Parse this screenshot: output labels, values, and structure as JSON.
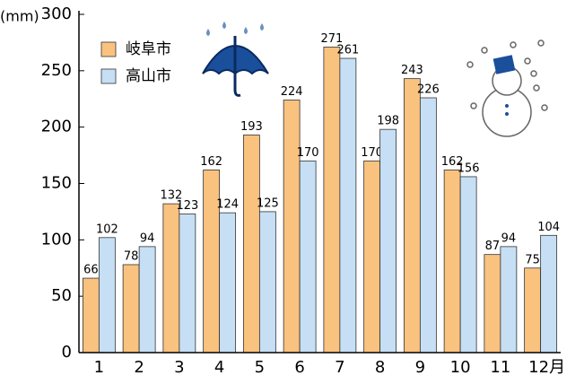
{
  "chart_data": {
    "type": "bar",
    "y_label": "(mm)",
    "categories": [
      "1",
      "2",
      "3",
      "4",
      "5",
      "6",
      "7",
      "8",
      "9",
      "10",
      "11",
      "12月"
    ],
    "series": [
      {
        "name": "岐阜市",
        "color": "#f9c27f",
        "values": [
          66,
          78,
          132,
          162,
          193,
          224,
          271,
          170,
          243,
          162,
          87,
          75
        ]
      },
      {
        "name": "高山市",
        "color": "#c6dff4",
        "values": [
          102,
          94,
          123,
          124,
          125,
          170,
          261,
          198,
          226,
          156,
          94,
          104
        ]
      }
    ],
    "ylim": [
      0,
      300
    ],
    "yticks": [
      0,
      50,
      100,
      150,
      200,
      250,
      300
    ],
    "grid": false,
    "legend": "upper-left"
  }
}
